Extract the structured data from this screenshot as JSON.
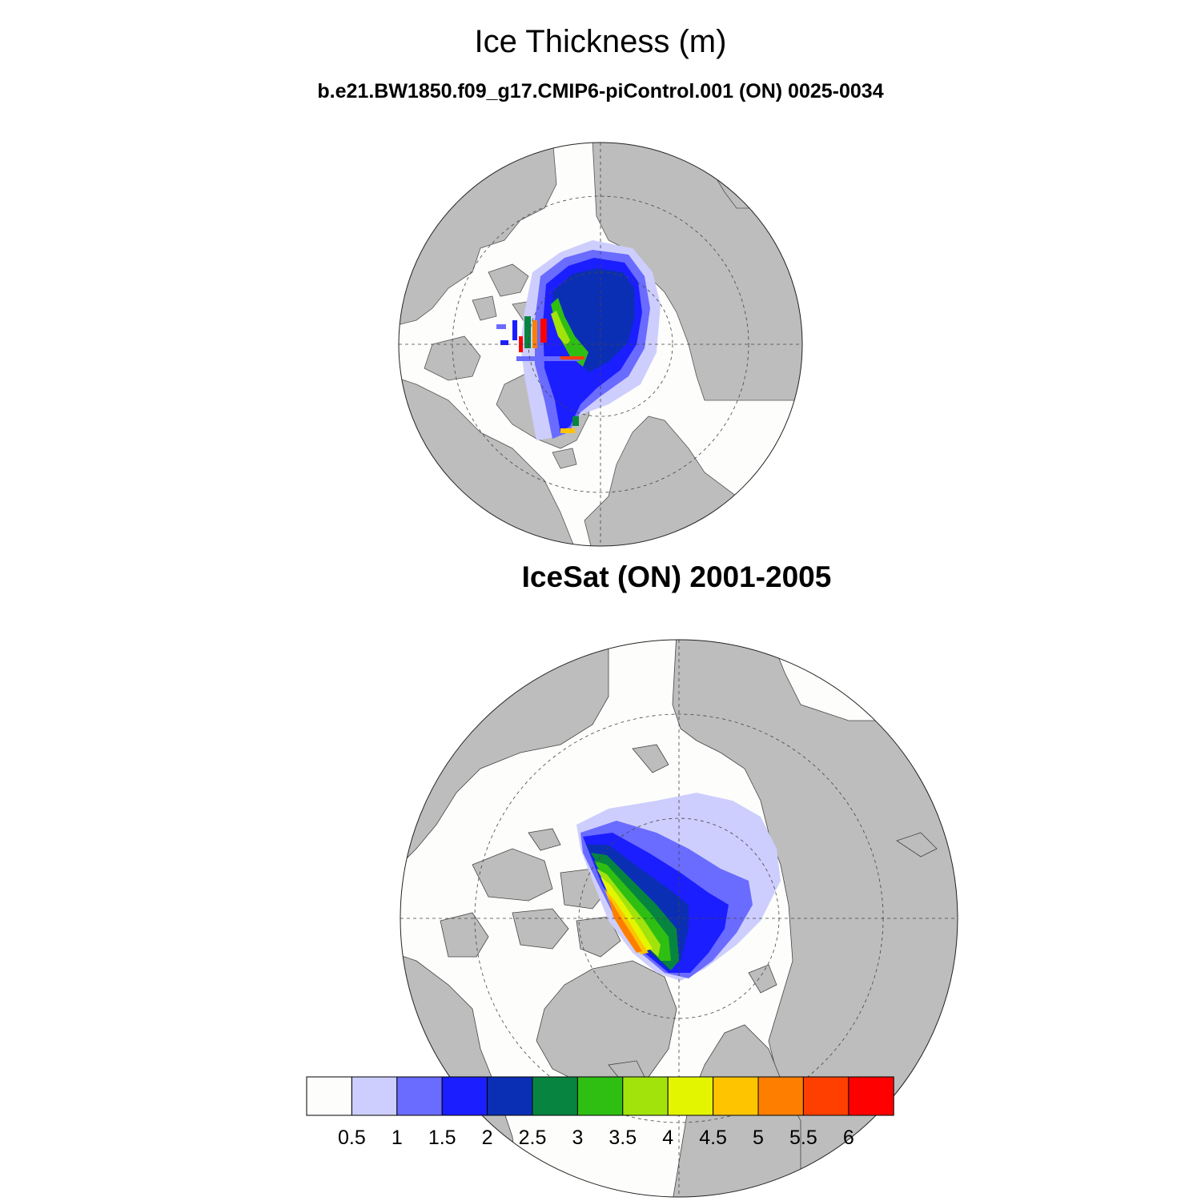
{
  "title": "Ice Thickness (m)",
  "subtitle": "b.e21.BW1850.f09_g17.CMIP6-piControl.001 (ON) 0025-0034",
  "panel2_title": "IceSat (ON) 2001-2005",
  "colorbar": {
    "colors": [
      "#fdfdfb",
      "#cdcefd",
      "#6a6bff",
      "#1b1eff",
      "#0b2fb4",
      "#078540",
      "#2fbf13",
      "#a3e30c",
      "#e3f600",
      "#fec400",
      "#fe7e00",
      "#fe3f00",
      "#fe0000"
    ],
    "labels": [
      "0.5",
      "1",
      "1.5",
      "2",
      "2.5",
      "3",
      "3.5",
      "4",
      "4.5",
      "5",
      "5.5",
      "6"
    ]
  },
  "colors": {
    "land": "#bdbdbd",
    "ocean": "#fdfdfb"
  }
}
